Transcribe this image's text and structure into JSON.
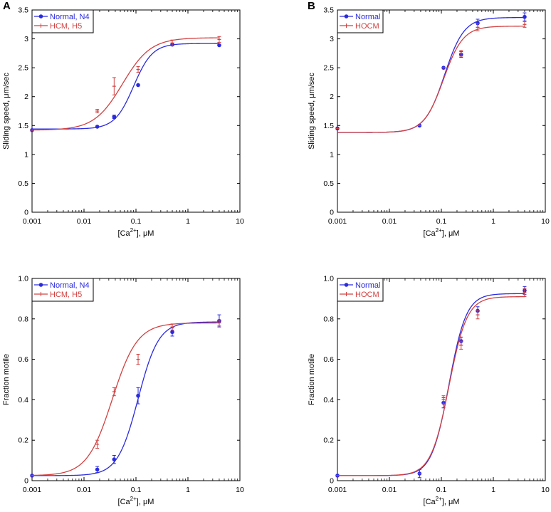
{
  "chart_data": [
    {
      "panel": "A",
      "type": "line",
      "xscale": "log",
      "xlim": [
        0.001,
        10
      ],
      "ylim": [
        0,
        3.5
      ],
      "xticks": [
        "0.001",
        "0.01",
        "0.1",
        "1",
        "10"
      ],
      "yticks": [
        "0",
        "0.5",
        "1",
        "1.5",
        "2",
        "2.5",
        "3",
        "3.5"
      ],
      "xlabel": {
        "prefix": "[Ca",
        "sup": "2+",
        "suffix": "], μM"
      },
      "ylabel": "Sliding speed, μm/sec",
      "series": [
        {
          "name": "Normal, N4",
          "color": "#2a2adf",
          "marker": "circle",
          "points": [
            [
              0.001,
              1.42
            ],
            [
              0.018,
              1.48
            ],
            [
              0.038,
              1.65
            ],
            [
              0.11,
              2.2
            ],
            [
              0.5,
              2.9
            ],
            [
              4,
              2.89
            ]
          ],
          "errors": [
            0,
            0,
            0.03,
            0,
            0.02,
            0
          ],
          "curve": {
            "bottom": 1.44,
            "top": 2.92,
            "ec50": 0.09,
            "hill": 2.4
          }
        },
        {
          "name": "HCM, H5",
          "color": "#d24040",
          "marker": "cross",
          "points": [
            [
              0.001,
              1.42
            ],
            [
              0.018,
              1.75
            ],
            [
              0.038,
              2.18
            ],
            [
              0.11,
              2.47
            ],
            [
              0.5,
              2.93
            ],
            [
              4,
              2.99
            ]
          ],
          "errors": [
            0,
            0.03,
            0.15,
            0.05,
            0.05,
            0.05
          ],
          "curve": {
            "bottom": 1.42,
            "top": 3.02,
            "ec50": 0.055,
            "hill": 1.6
          }
        }
      ]
    },
    {
      "panel": "B",
      "type": "line",
      "xscale": "log",
      "xlim": [
        0.001,
        10
      ],
      "ylim": [
        0,
        3.5
      ],
      "xticks": [
        "0.001",
        "0.01",
        "0.1",
        "1",
        "10"
      ],
      "yticks": [
        "0",
        "0.5",
        "1",
        "1.5",
        "2",
        "2.5",
        "3",
        "3.5"
      ],
      "xlabel": {
        "prefix": "[Ca",
        "sup": "2+",
        "suffix": "], μM"
      },
      "ylabel": "Sliding speed, μm/sec",
      "series": [
        {
          "name": "Normal",
          "color": "#2a2adf",
          "marker": "circle",
          "points": [
            [
              0.001,
              1.45
            ],
            [
              0.038,
              1.5
            ],
            [
              0.11,
              2.5
            ],
            [
              0.24,
              2.73
            ],
            [
              0.5,
              3.27
            ],
            [
              4,
              3.38
            ]
          ],
          "errors": [
            0,
            0,
            0,
            0.05,
            0.07,
            0.07
          ],
          "curve": {
            "bottom": 1.38,
            "top": 3.37,
            "ec50": 0.115,
            "hill": 2.3
          }
        },
        {
          "name": "HOCM",
          "color": "#d24040",
          "marker": "cross",
          "points": [
            [
              0.001,
              1.45
            ],
            [
              0.038,
              1.5
            ],
            [
              0.11,
              2.5
            ],
            [
              0.24,
              2.75
            ],
            [
              0.5,
              3.2
            ],
            [
              4,
              3.25
            ]
          ],
          "errors": [
            0,
            0,
            0,
            0.05,
            0.06,
            0.05
          ],
          "curve": {
            "bottom": 1.38,
            "top": 3.22,
            "ec50": 0.11,
            "hill": 2.3
          }
        }
      ]
    },
    {
      "panel": "",
      "type": "line",
      "xscale": "log",
      "xlim": [
        0.001,
        10
      ],
      "ylim": [
        0,
        1
      ],
      "xticks": [
        "0.001",
        "0.01",
        "0.1",
        "1",
        "10"
      ],
      "yticks": [
        "0",
        "0.2",
        "0.4",
        "0.6",
        "0.8",
        "1.0"
      ],
      "xlabel": {
        "prefix": "[Ca",
        "sup": "2+",
        "suffix": "], μM"
      },
      "ylabel": "Fraction motile",
      "series": [
        {
          "name": "Normal, N4",
          "color": "#2a2adf",
          "marker": "circle",
          "points": [
            [
              0.001,
              0.025
            ],
            [
              0.018,
              0.055
            ],
            [
              0.038,
              0.105
            ],
            [
              0.11,
              0.42
            ],
            [
              0.5,
              0.735
            ],
            [
              4,
              0.79
            ]
          ],
          "errors": [
            0,
            0.015,
            0.02,
            0.04,
            0.02,
            0.03
          ],
          "curve": {
            "bottom": 0.025,
            "top": 0.785,
            "ec50": 0.11,
            "hill": 2.2
          }
        },
        {
          "name": "HCM, H5",
          "color": "#d24040",
          "marker": "cross",
          "points": [
            [
              0.001,
              0.025
            ],
            [
              0.018,
              0.18
            ],
            [
              0.038,
              0.44
            ],
            [
              0.11,
              0.6
            ],
            [
              0.5,
              0.76
            ],
            [
              4,
              0.78
            ]
          ],
          "errors": [
            0,
            0.02,
            0.02,
            0.025,
            0.015,
            0.015
          ],
          "curve": {
            "bottom": 0.025,
            "top": 0.78,
            "ec50": 0.035,
            "hill": 1.8
          }
        }
      ]
    },
    {
      "panel": "",
      "type": "line",
      "xscale": "log",
      "xlim": [
        0.001,
        10
      ],
      "ylim": [
        0,
        1
      ],
      "xticks": [
        "0.001",
        "0.01",
        "0.1",
        "1",
        "10"
      ],
      "yticks": [
        "0",
        "0.2",
        "0.4",
        "0.6",
        "0.8",
        "1.0"
      ],
      "xlabel": {
        "prefix": "[Ca",
        "sup": "2+",
        "suffix": "], μM"
      },
      "ylabel": "Fraction motile",
      "series": [
        {
          "name": "Normal",
          "color": "#2a2adf",
          "marker": "circle",
          "points": [
            [
              0.001,
              0.025
            ],
            [
              0.038,
              0.035
            ],
            [
              0.11,
              0.385
            ],
            [
              0.24,
              0.69
            ],
            [
              0.5,
              0.84
            ],
            [
              4,
              0.94
            ]
          ],
          "errors": [
            0,
            0.02,
            0.025,
            0.02,
            0.02,
            0.02
          ],
          "curve": {
            "bottom": 0.025,
            "top": 0.925,
            "ec50": 0.14,
            "hill": 2.6
          }
        },
        {
          "name": "HOCM",
          "color": "#d24040",
          "marker": "cross",
          "points": [
            [
              0.001,
              0.025
            ],
            [
              0.038,
              0.035
            ],
            [
              0.11,
              0.4
            ],
            [
              0.24,
              0.67
            ],
            [
              0.5,
              0.82
            ],
            [
              4,
              0.93
            ]
          ],
          "errors": [
            0,
            0,
            0.02,
            0.02,
            0.02,
            0.02
          ],
          "curve": {
            "bottom": 0.025,
            "top": 0.91,
            "ec50": 0.14,
            "hill": 2.5
          }
        }
      ]
    }
  ]
}
